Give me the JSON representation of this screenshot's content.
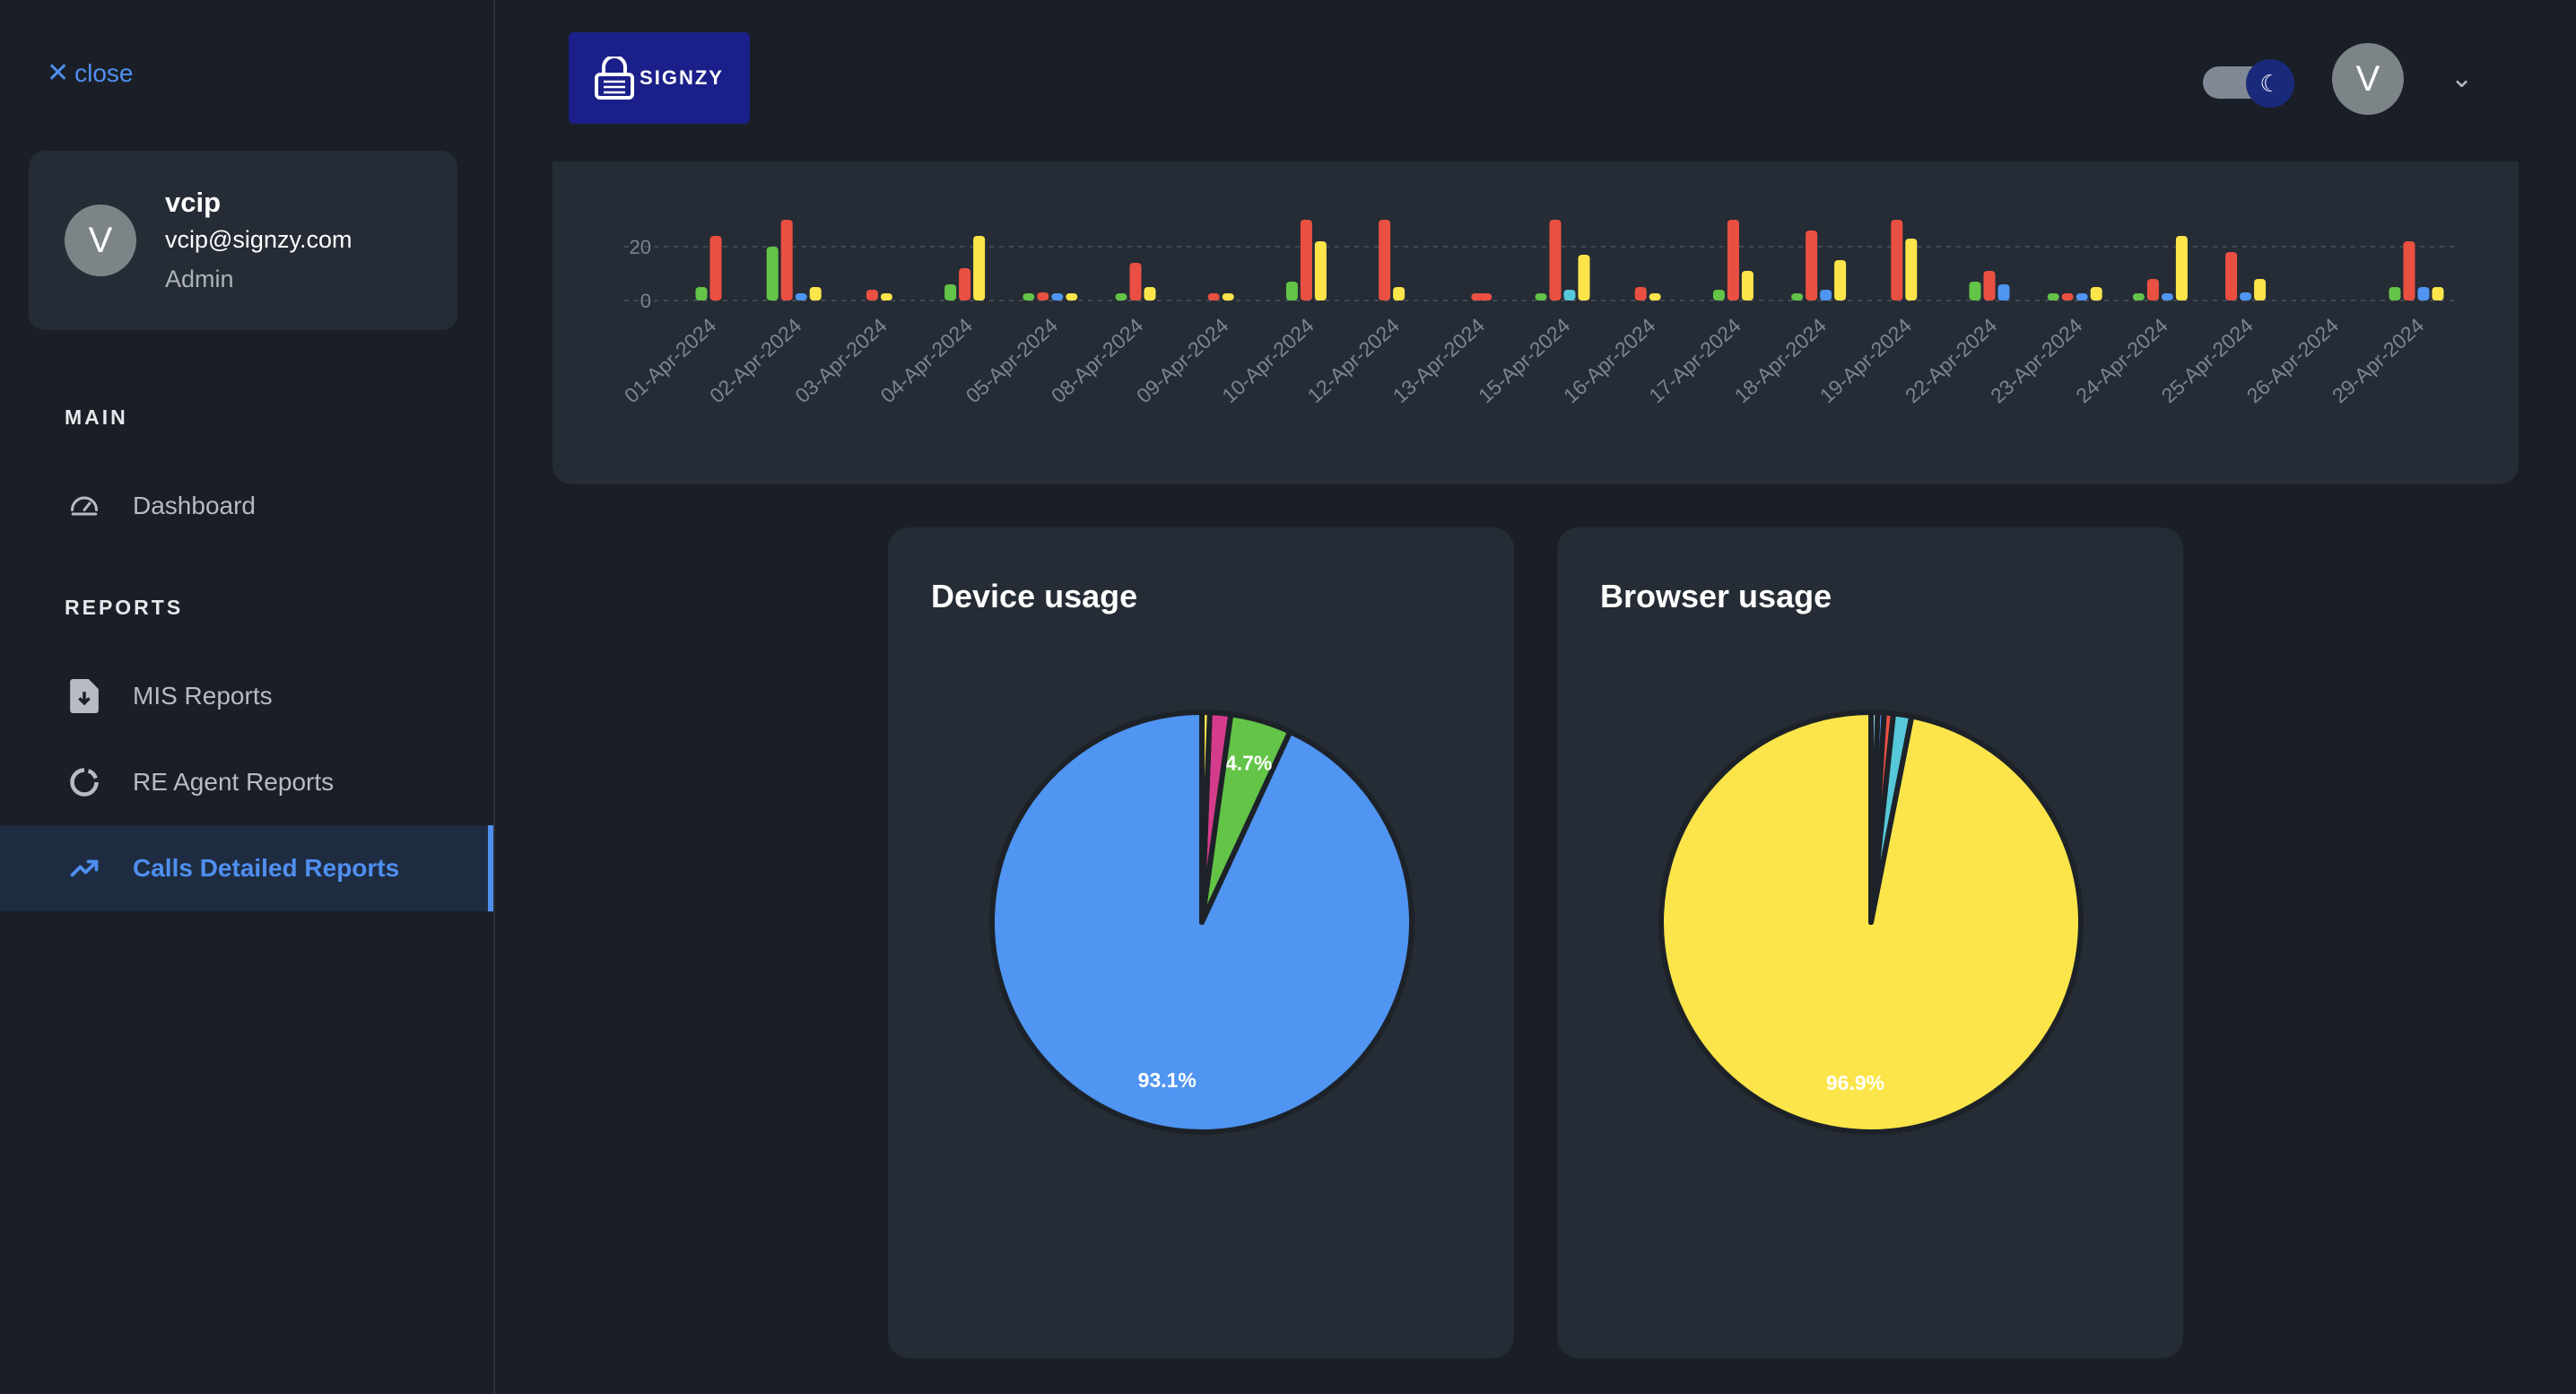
{
  "sidebar": {
    "close_label": "close",
    "profile": {
      "avatar_letter": "V",
      "name": "vcip",
      "email": "vcip@signzy.com",
      "role": "Admin"
    },
    "sections": {
      "main": "MAIN",
      "reports": "REPORTS"
    },
    "items": [
      {
        "label": "Dashboard",
        "icon": "gauge-icon"
      },
      {
        "label": "MIS Reports",
        "icon": "file-download-icon"
      },
      {
        "label": "RE Agent Reports",
        "icon": "donut-icon"
      },
      {
        "label": "Calls Detailed Reports",
        "icon": "trending-up-icon",
        "active": true
      }
    ]
  },
  "header": {
    "logo_text": "SIGNZY",
    "avatar_letter": "V",
    "theme": "dark"
  },
  "colors": {
    "green": "#63c447",
    "red": "#ea5042",
    "blue": "#4f95f1",
    "yellow": "#fbe54a",
    "cyan": "#57c8da",
    "pink": "#d63c8c"
  },
  "chart_data": [
    {
      "type": "bar",
      "y_ticks": [
        "0",
        "20"
      ],
      "categories": [
        "01-Apr-2024",
        "02-Apr-2024",
        "03-Apr-2024",
        "04-Apr-2024",
        "05-Apr-2024",
        "08-Apr-2024",
        "09-Apr-2024",
        "10-Apr-2024",
        "12-Apr-2024",
        "13-Apr-2024",
        "15-Apr-2024",
        "16-Apr-2024",
        "17-Apr-2024",
        "18-Apr-2024",
        "19-Apr-2024",
        "22-Apr-2024",
        "23-Apr-2024",
        "24-Apr-2024",
        "25-Apr-2024",
        "26-Apr-2024",
        "29-Apr-2024"
      ],
      "series": [
        {
          "color": "green",
          "values": [
            5,
            20,
            0,
            6,
            1,
            2,
            0,
            7,
            0,
            0,
            2,
            0,
            4,
            1,
            0,
            7,
            2,
            1,
            0,
            0,
            5
          ]
        },
        {
          "color": "red",
          "values": [
            24,
            30,
            4,
            12,
            3,
            14,
            2,
            30,
            30,
            1,
            30,
            5,
            30,
            26,
            30,
            11,
            1,
            8,
            18,
            0,
            22
          ]
        },
        {
          "color": "blue",
          "values": [
            0,
            2,
            0,
            0,
            1,
            0,
            0,
            0,
            0,
            0,
            0,
            0,
            0,
            4,
            0,
            6,
            1,
            2,
            3,
            0,
            5
          ]
        },
        {
          "color": "cyan",
          "values": [
            0,
            0,
            0,
            0,
            0,
            0,
            0,
            0,
            0,
            0,
            4,
            0,
            0,
            0,
            0,
            0,
            0,
            0,
            0,
            0,
            0
          ]
        },
        {
          "color": "yellow",
          "values": [
            0,
            5,
            2,
            24,
            1,
            5,
            2,
            22,
            5,
            0,
            17,
            1,
            11,
            15,
            23,
            0,
            5,
            24,
            8,
            0,
            5
          ]
        }
      ]
    },
    {
      "type": "pie",
      "title": "Device usage",
      "slices": [
        {
          "value": 93.1,
          "color": "#4f95f1",
          "label": "93.1%"
        },
        {
          "value": 4.7,
          "color": "#63c447",
          "label": "4.7%"
        },
        {
          "value": 1.6,
          "color": "#d63c8c",
          "label": ""
        },
        {
          "value": 0.6,
          "color": "#fbe54a",
          "label": ""
        }
      ]
    },
    {
      "type": "pie",
      "title": "Browser usage",
      "slices": [
        {
          "value": 96.9,
          "color": "#fbe54a",
          "label": "96.9%"
        },
        {
          "value": 1.4,
          "color": "#57c8da",
          "label": ""
        },
        {
          "value": 0.7,
          "color": "#ea5042",
          "label": ""
        },
        {
          "value": 0.5,
          "color": "#4f95f1",
          "label": ""
        },
        {
          "value": 0.5,
          "color": "#9ad3e8",
          "label": ""
        }
      ]
    }
  ]
}
